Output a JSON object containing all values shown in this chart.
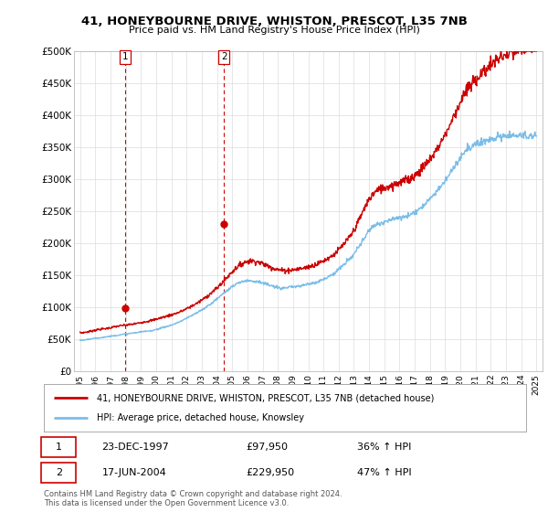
{
  "title1": "41, HONEYBOURNE DRIVE, WHISTON, PRESCOT, L35 7NB",
  "title2": "Price paid vs. HM Land Registry's House Price Index (HPI)",
  "legend_line1": "41, HONEYBOURNE DRIVE, WHISTON, PRESCOT, L35 7NB (detached house)",
  "legend_line2": "HPI: Average price, detached house, Knowsley",
  "annotation1_date": "23-DEC-1997",
  "annotation1_price": "£97,950",
  "annotation1_hpi": "36% ↑ HPI",
  "annotation2_date": "17-JUN-2004",
  "annotation2_price": "£229,950",
  "annotation2_hpi": "47% ↑ HPI",
  "footnote": "Contains HM Land Registry data © Crown copyright and database right 2024.\nThis data is licensed under the Open Government Licence v3.0.",
  "sale1_year": 1997.97,
  "sale1_value": 97950,
  "sale2_year": 2004.46,
  "sale2_value": 229950,
  "hpi_color": "#7abde8",
  "price_color": "#cc0000",
  "vline_color": "#cc0000",
  "ylim": [
    0,
    500000
  ],
  "yticks": [
    0,
    50000,
    100000,
    150000,
    200000,
    250000,
    300000,
    350000,
    400000,
    450000,
    500000
  ],
  "ytick_labels": [
    "£0",
    "£50K",
    "£100K",
    "£150K",
    "£200K",
    "£250K",
    "£300K",
    "£350K",
    "£400K",
    "£450K",
    "£500K"
  ],
  "xlim_start": 1994.6,
  "xlim_end": 2025.4,
  "hpi_start": 1995,
  "hpi_end": 2025,
  "hpi_points": [
    60000,
    62000,
    65000,
    67000,
    70000,
    72000,
    74000,
    77000,
    80000,
    84000,
    88000,
    93000,
    100000,
    108000,
    118000,
    130000,
    145000,
    160000,
    170000,
    172000,
    168000,
    162000,
    158000,
    158000,
    160000,
    163000,
    168000,
    175000,
    185000,
    200000,
    220000,
    250000,
    275000,
    285000,
    290000,
    295000,
    300000,
    310000,
    325000,
    345000,
    370000,
    400000,
    430000,
    450000,
    465000,
    478000,
    490000,
    495000,
    500000,
    505000,
    510000
  ],
  "hpi_blue_points": [
    48000,
    50000,
    52000,
    54000,
    56000,
    58000,
    60000,
    62000,
    64000,
    68000,
    72000,
    78000,
    85000,
    93000,
    102000,
    113000,
    125000,
    135000,
    141000,
    141000,
    138000,
    133000,
    130000,
    131000,
    133000,
    136000,
    140000,
    146000,
    155000,
    168000,
    183000,
    205000,
    225000,
    232000,
    236000,
    240000,
    244000,
    252000,
    265000,
    280000,
    298000,
    320000,
    340000,
    352000,
    358000,
    363000,
    367000,
    368000,
    368000,
    368000,
    368000
  ]
}
